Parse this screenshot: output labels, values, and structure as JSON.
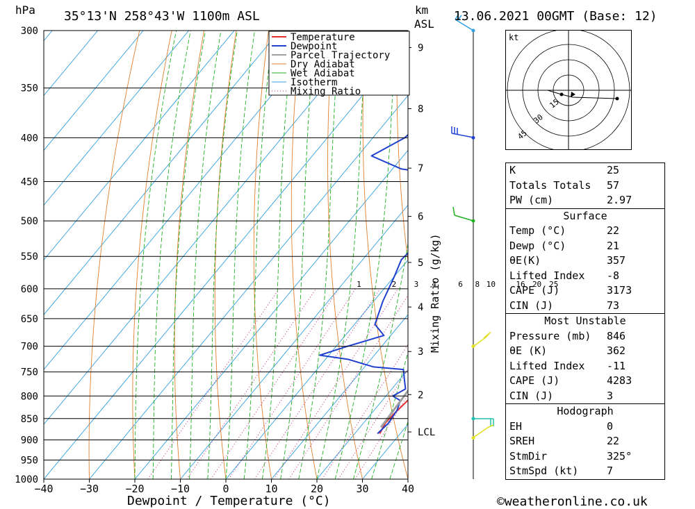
{
  "header": {
    "pressure_unit": "hPa",
    "location": "35°13'N 258°43'W 1100m ASL",
    "height_unit": "km",
    "height_ref": "ASL",
    "datetime": "13.06.2021 00GMT (Base: 12)"
  },
  "footer": {
    "copyright": "©weatheronline.co.uk"
  },
  "colors": {
    "temperature": "#e03030",
    "dewpoint": "#2040d0",
    "parcel": "#a0a0a0",
    "dry_adiabat": "#e08030",
    "wet_adiabat": "#20b020",
    "isotherm": "#30a0e0",
    "mixing_ratio": "#c02080"
  },
  "chart_data": {
    "type": "line",
    "title": "35°13'N 258°43'W 1100m ASL",
    "xlabel": "Dewpoint / Temperature (°C)",
    "ylabel": "hPa",
    "xlim": [
      -40,
      40
    ],
    "ylim": [
      1000,
      300
    ],
    "x_ticks": [
      -40,
      -30,
      -20,
      -10,
      0,
      10,
      20,
      30,
      40
    ],
    "pressure_levels": [
      300,
      350,
      400,
      450,
      500,
      550,
      600,
      650,
      700,
      750,
      800,
      850,
      900,
      950,
      1000
    ],
    "height_km_ticks": [
      {
        "km": "9",
        "p": 314
      },
      {
        "km": "8",
        "p": 370
      },
      {
        "km": "7",
        "p": 434
      },
      {
        "km": "6",
        "p": 494
      },
      {
        "km": "5",
        "p": 559
      },
      {
        "km": "4",
        "p": 630
      },
      {
        "km": "3",
        "p": 710
      },
      {
        "km": "2",
        "p": 797
      },
      {
        "km": "LCL",
        "p": 881
      }
    ],
    "mixing_ratio_label": "Mixing Ratio (g/kg)",
    "mixing_ratio_values": [
      "1",
      "2",
      "3",
      "4",
      "6",
      "8",
      "10",
      "16",
      "20",
      "25"
    ],
    "mixing_ratio_label_positions_T": [
      -5.5,
      2.2,
      7.1,
      11.0,
      16.8,
      20.5,
      23.5,
      30.0,
      33.6,
      37.3
    ],
    "series": [
      {
        "name": "Temperature",
        "points": [
          [
            25.5,
            885
          ],
          [
            24.8,
            860
          ],
          [
            25.0,
            840
          ],
          [
            25.6,
            810
          ],
          [
            25.2,
            790
          ],
          [
            25.0,
            770
          ],
          [
            24.0,
            745
          ],
          [
            25.2,
            725
          ],
          [
            28.7,
            713
          ],
          [
            26.0,
            690
          ],
          [
            24.0,
            660
          ],
          [
            22.0,
            640
          ],
          [
            20.0,
            610
          ],
          [
            18.0,
            590
          ],
          [
            16.0,
            565
          ],
          [
            13.5,
            540
          ],
          [
            11.0,
            520
          ],
          [
            8.5,
            500
          ],
          [
            7.0,
            480
          ],
          [
            5.0,
            460
          ],
          [
            3.0,
            445
          ],
          [
            2.5,
            425
          ],
          [
            2.0,
            405
          ],
          [
            2.0,
            380
          ],
          [
            0.0,
            360
          ],
          [
            -2.0,
            340
          ],
          [
            -4.0,
            320
          ],
          [
            -5.0,
            300
          ]
        ]
      },
      {
        "name": "Dewpoint",
        "points": [
          [
            25.0,
            885
          ],
          [
            25.5,
            860
          ],
          [
            25.0,
            830
          ],
          [
            24.0,
            810
          ],
          [
            21.5,
            800
          ],
          [
            23.0,
            785
          ],
          [
            21.0,
            765
          ],
          [
            19.0,
            745
          ],
          [
            12.0,
            740
          ],
          [
            5.0,
            725
          ],
          [
            -2.0,
            717
          ],
          [
            2.5,
            700
          ],
          [
            8.5,
            680
          ],
          [
            4.5,
            660
          ],
          [
            2.0,
            620
          ],
          [
            0.0,
            580
          ],
          [
            -1.5,
            555
          ],
          [
            0.0,
            500
          ],
          [
            -7.0,
            485
          ],
          [
            -6.5,
            445
          ],
          [
            -10.0,
            440
          ],
          [
            -18.0,
            435
          ],
          [
            -27.0,
            420
          ],
          [
            -23.0,
            400
          ],
          [
            -22.0,
            380
          ],
          [
            -12.5,
            340
          ],
          [
            -1.5,
            305
          ],
          [
            1.0,
            300
          ]
        ]
      },
      {
        "name": "Parcel Trajectory",
        "points": [
          [
            24.6,
            870
          ],
          [
            24.0,
            800
          ],
          [
            22.7,
            700
          ],
          [
            21.0,
            600
          ],
          [
            18.5,
            500
          ],
          [
            15.0,
            400
          ],
          [
            11.0,
            360
          ]
        ]
      }
    ],
    "legend": [
      "Temperature",
      "Dewpoint",
      "Parcel Trajectory",
      "Dry Adiabat",
      "Wet Adiabat",
      "Isotherm",
      "Mixing Ratio"
    ],
    "legend_position": "top-right",
    "wind_barbs": [
      {
        "p": 300,
        "color": "#30a0e0"
      },
      {
        "p": 400,
        "color": "#2040d0"
      },
      {
        "p": 500,
        "color": "#20b020"
      },
      {
        "p": 700,
        "color": "#e0e020"
      },
      {
        "p": 850,
        "color": "#20c0b0"
      },
      {
        "p": 895,
        "color": "#e0e020"
      }
    ]
  },
  "hodograph": {
    "unit": "kt",
    "rings": [
      "15",
      "30",
      "45"
    ]
  },
  "indices": {
    "general": [
      {
        "label": "K",
        "value": "25"
      },
      {
        "label": "Totals Totals",
        "value": "57"
      },
      {
        "label": "PW (cm)",
        "value": "2.97"
      }
    ],
    "surface_title": "Surface",
    "surface": [
      {
        "label": "Temp (°C)",
        "value": "22"
      },
      {
        "label": "Dewp (°C)",
        "value": "21"
      },
      {
        "label": "θE(K)",
        "value": "357"
      },
      {
        "label": "Lifted Index",
        "value": "-8"
      },
      {
        "label": "CAPE (J)",
        "value": "3173"
      },
      {
        "label": "CIN (J)",
        "value": "73"
      }
    ],
    "mu_title": "Most Unstable",
    "most_unstable": [
      {
        "label": "Pressure (mb)",
        "value": "846"
      },
      {
        "label": "θE (K)",
        "value": "362"
      },
      {
        "label": "Lifted Index",
        "value": "-11"
      },
      {
        "label": "CAPE (J)",
        "value": "4283"
      },
      {
        "label": "CIN (J)",
        "value": "3"
      }
    ],
    "hodo_title": "Hodograph",
    "hodograph": [
      {
        "label": "EH",
        "value": "0"
      },
      {
        "label": "SREH",
        "value": "22"
      },
      {
        "label": "StmDir",
        "value": "325°"
      },
      {
        "label": "StmSpd (kt)",
        "value": "7"
      }
    ]
  }
}
